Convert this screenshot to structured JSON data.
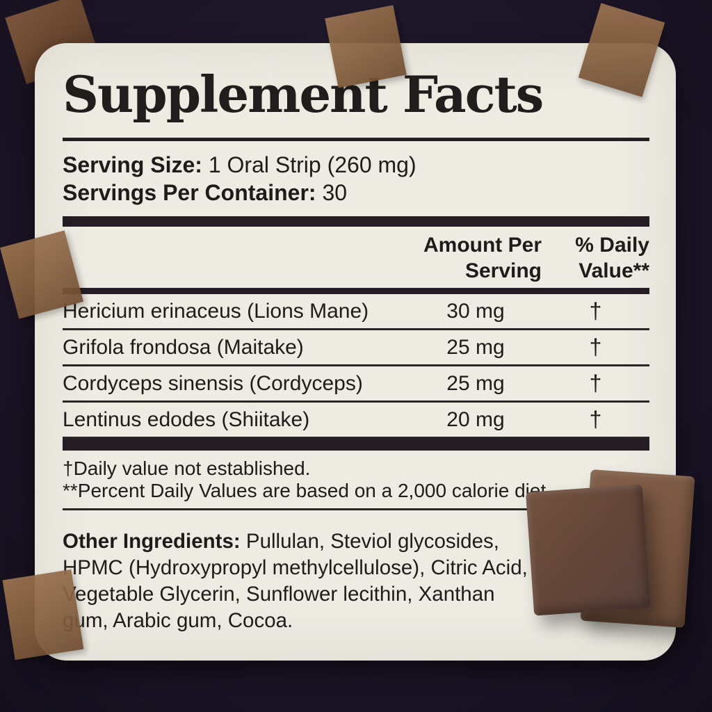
{
  "label": {
    "title": "Supplement Facts",
    "serving_size_label": "Serving Size:",
    "serving_size_value": " 1 Oral Strip (260 mg)",
    "servings_per_container_label": "Servings Per Container:",
    "servings_per_container_value": " 30"
  },
  "table": {
    "header": {
      "amount_line1": "Amount Per",
      "amount_line2": "Serving",
      "daily_value_line1": "% Daily",
      "daily_value_line2": "Value**"
    },
    "rows": [
      {
        "name": "Hericium erinaceus (Lions Mane)",
        "amount": "30 mg",
        "daily_value": "†"
      },
      {
        "name": "Grifola frondosa (Maitake)",
        "amount": "25 mg",
        "daily_value": "†"
      },
      {
        "name": "Cordyceps sinensis (Cordyceps)",
        "amount": "25 mg",
        "daily_value": "†"
      },
      {
        "name": "Lentinus edodes (Shiitake)",
        "amount": "20 mg",
        "daily_value": "†"
      }
    ]
  },
  "footnotes": {
    "dagger_note": "†Daily value not established.",
    "percent_note": "**Percent Daily Values are based on a 2,000 calorie diet."
  },
  "other_ingredients": {
    "label": "Other Ingredients:",
    "text": " Pullulan, Steviol glycosides, HPMC (Hydroxypropyl methylcellulose), Citric Acid, Vegetable Glycerin, Sunflower lecithin, Xanthan gum, Arabic gum, Cocoa."
  },
  "colors": {
    "background": "#1c1527",
    "card": "#edebe2",
    "text": "#1f1b1b",
    "rule": "#241d26",
    "tape": "#85603f",
    "chocolate_front": "#644639",
    "chocolate_back": "#775540"
  },
  "decor": {
    "tapes": [
      "top-left",
      "top-center",
      "top-right",
      "left-middle",
      "bottom-left"
    ],
    "chocolate_squares": 2
  }
}
